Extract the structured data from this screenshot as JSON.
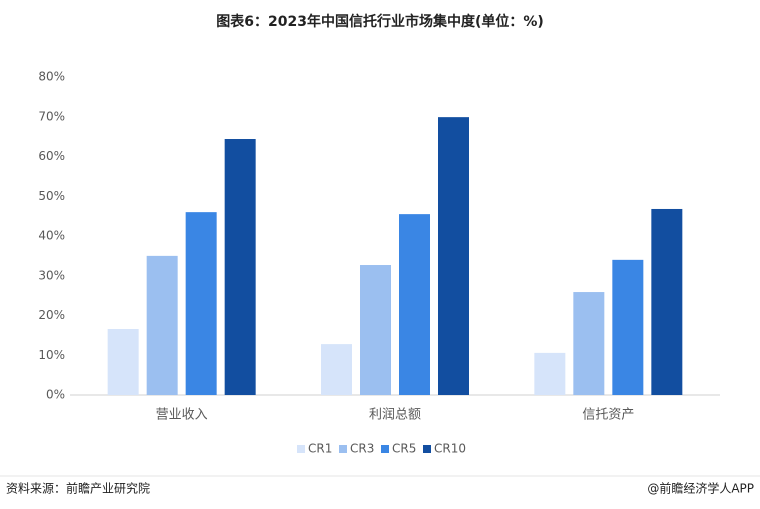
{
  "chart_data": {
    "type": "bar",
    "title": "图表6：2023年中国信托行业市场集中度(单位：%)",
    "categories": [
      "营业收入",
      "利润总额",
      "信托资产"
    ],
    "series": [
      {
        "name": "CR1",
        "color": "#d6e4fa",
        "values": [
          16.6,
          12.8,
          10.6
        ]
      },
      {
        "name": "CR3",
        "color": "#9bbff0",
        "values": [
          35.0,
          32.7,
          25.9
        ]
      },
      {
        "name": "CR5",
        "color": "#3a86e4",
        "values": [
          46.0,
          45.5,
          34.0
        ]
      },
      {
        "name": "CR10",
        "color": "#124ea0",
        "values": [
          64.4,
          69.9,
          46.8
        ]
      }
    ],
    "ylim": [
      0,
      80
    ],
    "yticks": [
      {
        "value": 0,
        "label": "0%"
      },
      {
        "value": 10,
        "label": "10%"
      },
      {
        "value": 20,
        "label": "20%"
      },
      {
        "value": 30,
        "label": "30%"
      },
      {
        "value": 40,
        "label": "40%"
      },
      {
        "value": 50,
        "label": "50%"
      },
      {
        "value": 60,
        "label": "60%"
      },
      {
        "value": 70,
        "label": "70%"
      },
      {
        "value": 80,
        "label": "80%"
      }
    ],
    "grid": false,
    "legend": "bottom",
    "source": "资料来源：前瞻产业研究院",
    "credit": "@前瞻经济学人APP"
  }
}
